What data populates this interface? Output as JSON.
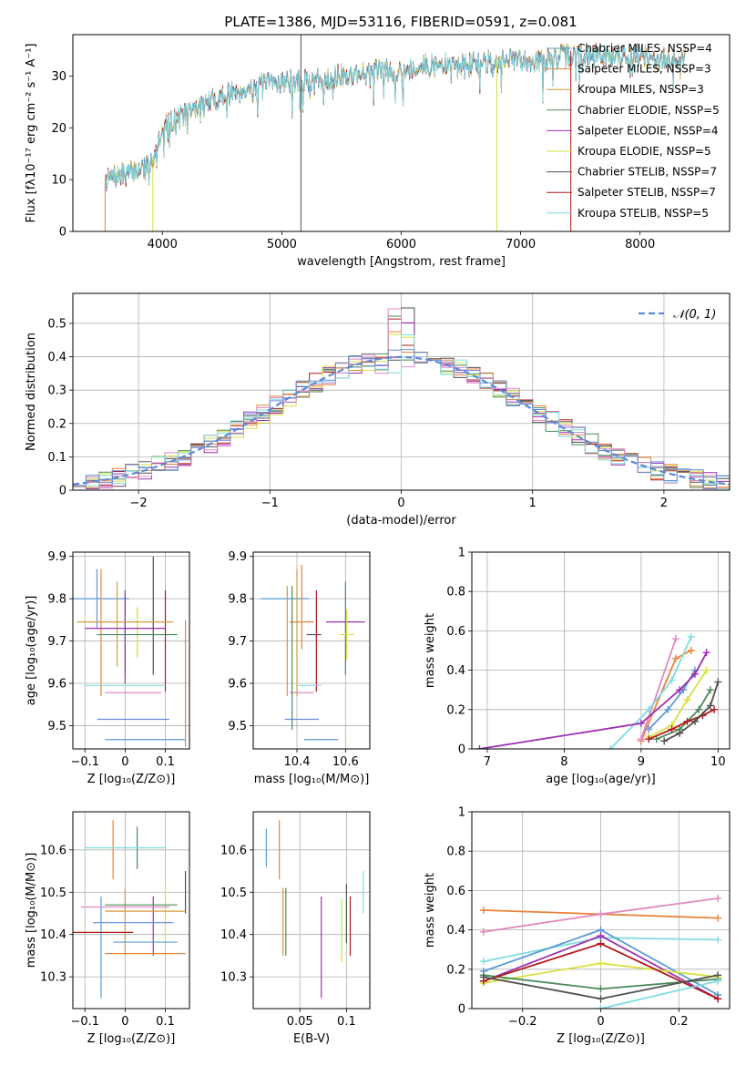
{
  "title": "PLATE=1386, MJD=53116, FIBERID=0591, z=0.081",
  "colors": [
    "#5a9bd4",
    "#e8833a",
    "#d49a3a",
    "#4a8a5a",
    "#9b30b0",
    "#d8e040",
    "#505050",
    "#b01818",
    "#80dce0",
    "#e088c0",
    "#6a8ae0"
  ],
  "chart_data": [
    {
      "id": "spectrum",
      "type": "line",
      "xlabel": "wavelength [Angstrom, rest frame]",
      "ylabel": "Flux [fλ10⁻¹⁷ erg cm⁻² s⁻¹ A⁻¹]",
      "xlim": [
        3250,
        8750
      ],
      "ylim": [
        0,
        38
      ],
      "xticks": [
        4000,
        5000,
        6000,
        7000,
        8000
      ],
      "yticks": [
        0,
        10,
        20,
        30
      ],
      "legend_position": "top-right",
      "legend": [
        "Chabrier MILES, N_SSP=4",
        "Salpeter MILES, N_SSP=3",
        "Kroupa MILES, N_SSP=3",
        "Chabrier ELODIE, N_SSP=5",
        "Salpeter ELODIE, N_SSP=4",
        "Kroupa ELODIE, N_SSP=5",
        "Chabrier STELIB, N_SSP=7",
        "Salpeter STELIB, N_SSP=7",
        "Kroupa STELIB, N_SSP=5"
      ],
      "legend_colors": [
        "#5a9bd4",
        "#e8833a",
        "#d49a3a",
        "#4a8a5a",
        "#9b30b0",
        "#d8e040",
        "#505050",
        "#b01818",
        "#80dce0"
      ],
      "continuum_x": [
        3520,
        3700,
        3900,
        4000,
        4200,
        4400,
        4600,
        4800,
        5000,
        5200,
        5500,
        5800,
        6000,
        6200,
        6500,
        6800,
        7000,
        7200,
        7400,
        7600,
        7800,
        8000,
        8200,
        8400
      ],
      "continuum_y": [
        10,
        11,
        13,
        20,
        23,
        25,
        27,
        28,
        29,
        29,
        30,
        31,
        31,
        32,
        32,
        33,
        33,
        33,
        34,
        34,
        34,
        34,
        33,
        34
      ],
      "spikes_x": [
        3520,
        3920,
        5160,
        6800,
        7420
      ],
      "grid": false
    },
    {
      "id": "residuals",
      "type": "histogram",
      "xlabel": "(data-model)/error",
      "ylabel": "Normed distribution",
      "xlim": [
        -2.5,
        2.5
      ],
      "ylim": [
        0,
        0.59
      ],
      "xticks": [
        -2,
        -1,
        0,
        1,
        2
      ],
      "yticks": [
        0.0,
        0.1,
        0.2,
        0.3,
        0.4,
        0.5
      ],
      "bin_width": 0.1,
      "n_hist": 9,
      "legend": [
        "𝒩(0, 1)"
      ],
      "legend_position": "top-right",
      "grid": true
    },
    {
      "id": "age-vs-Z",
      "type": "errorbar",
      "xlabel": "Z [log₁₀(Z/Z⊙)]",
      "ylabel": "age  [log₁₀(age/yr)]",
      "xlim": [
        -0.13,
        0.16
      ],
      "ylim": [
        9.445,
        9.91
      ],
      "xticks": [
        -0.1,
        0.0,
        0.1
      ],
      "yticks": [
        9.5,
        9.6,
        9.7,
        9.8,
        9.9
      ],
      "points": [
        {
          "x": -0.07,
          "xerr": 0.08,
          "y": 9.8,
          "yerr": 0.07
        },
        {
          "x": -0.06,
          "xerr": 0.0,
          "y": 9.72,
          "yerr": 0.15
        },
        {
          "x": -0.02,
          "xerr": 0.0,
          "y": 9.74,
          "yerr": 0.1
        },
        {
          "x": 0.0,
          "xerr": 0.0,
          "y": 9.72,
          "yerr": 0.1
        },
        {
          "x": 0.0,
          "xerr": 0.0,
          "y": 9.71,
          "yerr": 0.11
        },
        {
          "x": 0.03,
          "xerr": 0.0,
          "y": 9.72,
          "yerr": 0.06
        },
        {
          "x": 0.07,
          "xerr": 0.0,
          "y": 9.76,
          "yerr": 0.14
        },
        {
          "x": 0.1,
          "xerr": 0.0,
          "y": 9.7,
          "yerr": 0.12
        },
        {
          "x": 0.0,
          "xerr": 0.1,
          "y": 9.595,
          "yerr": 0.0
        },
        {
          "x": 0.02,
          "xerr": 0.07,
          "y": 9.578,
          "yerr": 0.0
        },
        {
          "x": 0.02,
          "xerr": 0.09,
          "y": 9.515,
          "yerr": 0.0
        },
        {
          "x": 0.05,
          "xerr": 0.1,
          "y": 9.467,
          "yerr": 0.0
        },
        {
          "x": 0.15,
          "xerr": 0.0,
          "y": 9.6,
          "yerr": 0.15
        },
        {
          "x": 0.0,
          "xerr": 0.12,
          "y": 9.745,
          "yerr": 0.0
        },
        {
          "x": 0.03,
          "xerr": 0.1,
          "y": 9.715,
          "yerr": 0.0
        },
        {
          "x": 0.0,
          "xerr": 0.1,
          "y": 9.73,
          "yerr": 0.0
        }
      ],
      "grid": true
    },
    {
      "id": "age-vs-mass",
      "type": "errorbar",
      "xlabel": "mass [log₁₀(M/M⊙)]",
      "ylabel": "",
      "xlim": [
        10.22,
        10.7
      ],
      "ylim": [
        9.445,
        9.91
      ],
      "xticks": [
        10.4,
        10.6
      ],
      "yticks": [
        9.5,
        9.6,
        9.7,
        9.8,
        9.9
      ],
      "points": [
        {
          "x": 10.35,
          "xerr": 0.1,
          "y": 9.8,
          "yerr": 0.0
        },
        {
          "x": 10.42,
          "xerr": 0.0,
          "y": 9.78,
          "yerr": 0.1
        },
        {
          "x": 10.4,
          "xerr": 0.0,
          "y": 9.72,
          "yerr": 0.15
        },
        {
          "x": 10.6,
          "xerr": 0.0,
          "y": 9.73,
          "yerr": 0.11
        },
        {
          "x": 10.6,
          "xerr": 0.08,
          "y": 9.745,
          "yerr": 0.0
        },
        {
          "x": 10.605,
          "xerr": 0.03,
          "y": 9.715,
          "yerr": 0.06
        },
        {
          "x": 10.47,
          "xerr": 0.03,
          "y": 9.715,
          "yerr": 0.0
        },
        {
          "x": 10.48,
          "xerr": 0.0,
          "y": 9.7,
          "yerr": 0.12
        },
        {
          "x": 10.45,
          "xerr": 0.05,
          "y": 9.595,
          "yerr": 0.0
        },
        {
          "x": 10.42,
          "xerr": 0.05,
          "y": 9.578,
          "yerr": 0.0
        },
        {
          "x": 10.42,
          "xerr": 0.07,
          "y": 9.515,
          "yerr": 0.0
        },
        {
          "x": 10.5,
          "xerr": 0.07,
          "y": 9.467,
          "yerr": 0.0
        },
        {
          "x": 10.42,
          "xerr": 0.05,
          "y": 9.745,
          "yerr": 0.0
        },
        {
          "x": 10.36,
          "xerr": 0.0,
          "y": 9.7,
          "yerr": 0.13
        },
        {
          "x": 10.38,
          "xerr": 0.0,
          "y": 9.66,
          "yerr": 0.17
        }
      ],
      "grid": true
    },
    {
      "id": "mass-weight-vs-age",
      "type": "line",
      "xlabel": "age  [log₁₀(age/yr)]",
      "ylabel": "mass weight",
      "xlim": [
        6.8,
        10.15
      ],
      "ylim": [
        0,
        1.0
      ],
      "xticks": [
        7,
        8,
        9,
        10
      ],
      "yticks": [
        0.0,
        0.2,
        0.4,
        0.6,
        0.8,
        1.0
      ],
      "series": [
        {
          "x": [
            9.0,
            9.45,
            9.65
          ],
          "y": [
            0.04,
            0.46,
            0.5
          ]
        },
        {
          "x": [
            9.0,
            9.45
          ],
          "y": [
            0.05,
            0.56
          ]
        },
        {
          "x": [
            8.6,
            9.1,
            9.4,
            9.65
          ],
          "y": [
            0.0,
            0.2,
            0.35,
            0.57
          ]
        },
        {
          "x": [
            9.1,
            9.35,
            9.55,
            9.7
          ],
          "y": [
            0.1,
            0.2,
            0.3,
            0.4
          ]
        },
        {
          "x": [
            6.9,
            9.0,
            9.5,
            9.7,
            9.85
          ],
          "y": [
            0.0,
            0.13,
            0.3,
            0.38,
            0.49
          ]
        },
        {
          "x": [
            9.1,
            9.4,
            9.6,
            9.85
          ],
          "y": [
            0.06,
            0.12,
            0.25,
            0.4
          ]
        },
        {
          "x": [
            9.2,
            9.5,
            9.75,
            9.9
          ],
          "y": [
            0.05,
            0.1,
            0.2,
            0.3
          ]
        },
        {
          "x": [
            9.1,
            9.4,
            9.6,
            9.8,
            9.95
          ],
          "y": [
            0.05,
            0.1,
            0.14,
            0.17,
            0.2
          ]
        },
        {
          "x": [
            9.3,
            9.5,
            9.7,
            9.9,
            10.0
          ],
          "y": [
            0.04,
            0.08,
            0.14,
            0.22,
            0.34
          ]
        }
      ],
      "grid": true
    },
    {
      "id": "mass-vs-Z",
      "type": "errorbar",
      "xlabel": "Z [log₁₀(Z/Z⊙)]",
      "ylabel": "mass [log₁₀(M/M⊙)]",
      "xlim": [
        -0.13,
        0.16
      ],
      "ylim": [
        10.225,
        10.69
      ],
      "xticks": [
        -0.1,
        0.0,
        0.1
      ],
      "yticks": [
        10.3,
        10.4,
        10.5,
        10.6
      ],
      "points": [
        {
          "x": -0.06,
          "xerr": 0.0,
          "y": 10.37,
          "yerr": 0.12
        },
        {
          "x": -0.03,
          "xerr": 0.0,
          "y": 10.6,
          "yerr": 0.07
        },
        {
          "x": 0.0,
          "xerr": 0.0,
          "y": 10.43,
          "yerr": 0.08
        },
        {
          "x": 0.03,
          "xerr": 0.0,
          "y": 10.605,
          "yerr": 0.05
        },
        {
          "x": 0.07,
          "xerr": 0.0,
          "y": 10.42,
          "yerr": 0.07
        },
        {
          "x": 0.1,
          "xerr": 0.0,
          "y": 10.45,
          "yerr": 0.07
        },
        {
          "x": 0.15,
          "xerr": 0.0,
          "y": 10.5,
          "yerr": 0.05
        },
        {
          "x": -0.07,
          "xerr": 0.09,
          "y": 10.405,
          "yerr": 0.0
        },
        {
          "x": 0.0,
          "xerr": 0.1,
          "y": 10.605,
          "yerr": 0.0
        },
        {
          "x": 0.0,
          "xerr": 0.11,
          "y": 10.465,
          "yerr": 0.0
        },
        {
          "x": 0.02,
          "xerr": 0.1,
          "y": 10.428,
          "yerr": 0.0
        },
        {
          "x": 0.05,
          "xerr": 0.08,
          "y": 10.382,
          "yerr": 0.0
        },
        {
          "x": 0.05,
          "xerr": 0.1,
          "y": 10.355,
          "yerr": 0.0
        },
        {
          "x": 0.05,
          "xerr": 0.1,
          "y": 10.455,
          "yerr": 0.0
        },
        {
          "x": 0.04,
          "xerr": 0.09,
          "y": 10.47,
          "yerr": 0.0
        }
      ],
      "grid": true
    },
    {
      "id": "mass-vs-EBV",
      "type": "errorbar",
      "xlabel": "E(B-V)",
      "ylabel": "",
      "xlim": [
        0.0,
        0.125
      ],
      "ylim": [
        10.225,
        10.69
      ],
      "xticks": [
        0.05,
        0.1
      ],
      "yticks": [
        10.3,
        10.4,
        10.5,
        10.6
      ],
      "points": [
        {
          "x": 0.014,
          "xerr": 0.0,
          "y": 10.605,
          "yerr": 0.045
        },
        {
          "x": 0.028,
          "xerr": 0.0,
          "y": 10.6,
          "yerr": 0.07
        },
        {
          "x": 0.032,
          "xerr": 0.0,
          "y": 10.43,
          "yerr": 0.08
        },
        {
          "x": 0.035,
          "xerr": 0.0,
          "y": 10.43,
          "yerr": 0.08
        },
        {
          "x": 0.073,
          "xerr": 0.0,
          "y": 10.37,
          "yerr": 0.12
        },
        {
          "x": 0.095,
          "xerr": 0.0,
          "y": 10.41,
          "yerr": 0.075
        },
        {
          "x": 0.1,
          "xerr": 0.0,
          "y": 10.45,
          "yerr": 0.07
        },
        {
          "x": 0.104,
          "xerr": 0.0,
          "y": 10.42,
          "yerr": 0.07
        },
        {
          "x": 0.118,
          "xerr": 0.0,
          "y": 10.5,
          "yerr": 0.05
        }
      ],
      "grid": true
    },
    {
      "id": "mass-weight-vs-Z",
      "type": "line",
      "xlabel": "Z [log₁₀(Z/Z⊙)]",
      "ylabel": "mass weight",
      "xlim": [
        -0.33,
        0.33
      ],
      "ylim": [
        0,
        1.0
      ],
      "xticks": [
        -0.2,
        0.0,
        0.2
      ],
      "yticks": [
        0.0,
        0.2,
        0.4,
        0.6,
        0.8,
        1.0
      ],
      "series": [
        {
          "x": [
            -0.3,
            0.0,
            0.3
          ],
          "y": [
            0.5,
            0.48,
            0.46
          ]
        },
        {
          "x": [
            -0.3,
            0.0,
            0.3
          ],
          "y": [
            0.39,
            0.48,
            0.56
          ]
        },
        {
          "x": [
            -0.3,
            0.0,
            0.3
          ],
          "y": [
            0.24,
            0.36,
            0.35
          ]
        },
        {
          "x": [
            -0.3,
            0.0,
            0.3
          ],
          "y": [
            0.19,
            0.4,
            0.07
          ]
        },
        {
          "x": [
            -0.3,
            0.0,
            0.3
          ],
          "y": [
            0.14,
            0.37,
            0.05
          ]
        },
        {
          "x": [
            -0.3,
            0.0,
            0.3
          ],
          "y": [
            0.13,
            0.23,
            0.16
          ]
        },
        {
          "x": [
            -0.3,
            0.0,
            0.3
          ],
          "y": [
            0.17,
            0.1,
            0.15
          ]
        },
        {
          "x": [
            -0.3,
            0.0,
            0.3
          ],
          "y": [
            0.14,
            0.33,
            0.05
          ]
        },
        {
          "x": [
            -0.3,
            0.0,
            0.3
          ],
          "y": [
            0.16,
            0.05,
            0.17
          ]
        },
        {
          "x": [
            0.0,
            0.3
          ],
          "y": [
            0.0,
            0.14
          ]
        }
      ],
      "grid": true
    }
  ]
}
